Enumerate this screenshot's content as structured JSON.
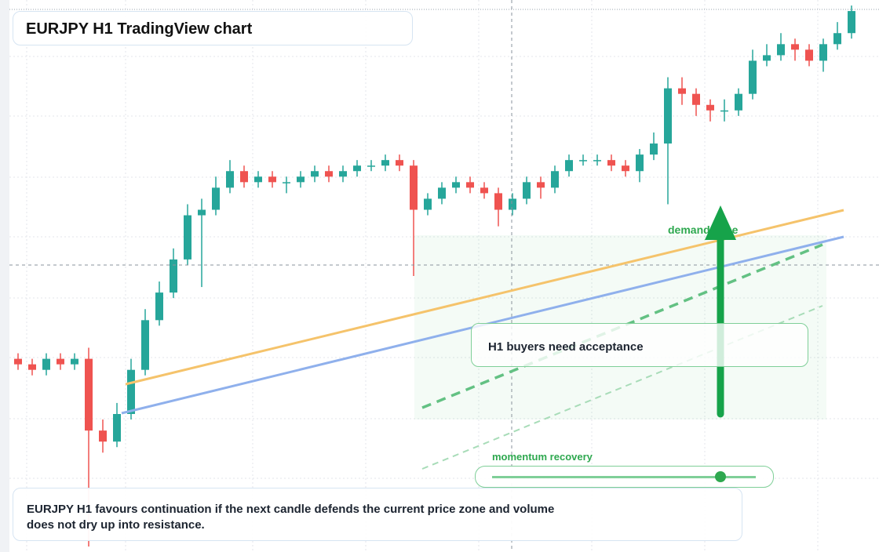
{
  "header": {
    "title": "EURJPY H1 TradingView chart"
  },
  "chart_data": {
    "type": "candlestick",
    "open": [
      35,
      34,
      33,
      35,
      34,
      35,
      22,
      20,
      25,
      33,
      42,
      47,
      53,
      61,
      62,
      66,
      69,
      67,
      68,
      67,
      67,
      68,
      69,
      68,
      69,
      70,
      70,
      71,
      70,
      62,
      64,
      66,
      67,
      66,
      65,
      62,
      64,
      67,
      66,
      69,
      71,
      71,
      71,
      70,
      69,
      72,
      74,
      84,
      83,
      81,
      80,
      80,
      83,
      89,
      90,
      92,
      91,
      89,
      92,
      94
    ],
    "high": [
      36,
      35,
      36,
      36,
      36,
      37,
      24,
      27,
      35,
      44,
      49,
      55,
      63,
      64,
      68,
      71,
      70,
      69,
      69,
      68,
      69,
      70,
      70,
      70,
      71,
      71,
      72,
      72,
      71,
      65,
      67,
      68,
      68,
      67,
      66,
      65,
      68,
      68,
      70,
      72,
      72,
      72,
      72,
      71,
      73,
      76,
      86,
      86,
      84,
      82,
      82,
      84,
      91,
      92,
      94,
      93,
      92,
      93,
      96,
      99
    ],
    "low": [
      33,
      32,
      32,
      33,
      33,
      1,
      18,
      19,
      24,
      32,
      41,
      46,
      52,
      48,
      61,
      65,
      66,
      66,
      66,
      65,
      66,
      67,
      67,
      67,
      68,
      69,
      69,
      69,
      50,
      61,
      63,
      65,
      65,
      64,
      59,
      61,
      63,
      64,
      65,
      68,
      70,
      70,
      69,
      68,
      67,
      71,
      63,
      81,
      79,
      78,
      78,
      79,
      82,
      88,
      89,
      89,
      88,
      87,
      91,
      93
    ],
    "close": [
      34,
      33,
      35,
      34,
      35,
      22,
      20,
      25,
      33,
      42,
      47,
      53,
      61,
      62,
      66,
      69,
      67,
      68,
      67,
      67,
      68,
      69,
      68,
      69,
      70,
      70,
      71,
      70,
      62,
      64,
      66,
      67,
      66,
      65,
      62,
      64,
      67,
      66,
      69,
      71,
      71,
      71,
      70,
      69,
      72,
      74,
      84,
      83,
      81,
      80,
      80,
      83,
      89,
      90,
      92,
      91,
      89,
      92,
      94,
      98
    ],
    "ylim": [
      0,
      100
    ],
    "up_color": "#26a69a",
    "down_color": "#ef5350"
  },
  "annotations": {
    "zone": "demand zone",
    "callout": "H1 buyers need acceptance",
    "slider": "momentum recovery"
  },
  "note": {
    "line1": "EURJPY H1 favours continuation if the next candle defends the current price zone and volume",
    "line2": "does not dry up into resistance."
  }
}
